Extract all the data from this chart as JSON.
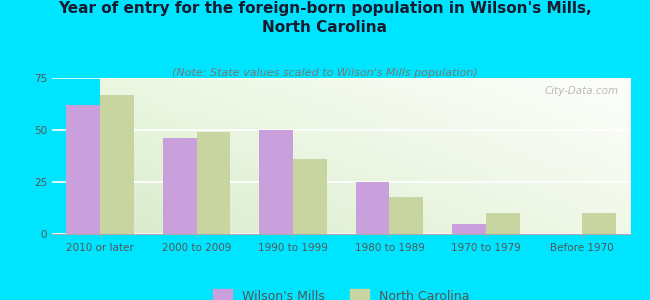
{
  "title": "Year of entry for the foreign-born population in Wilson's Mills,\nNorth Carolina",
  "subtitle": "(Note: State values scaled to Wilson's Mills population)",
  "categories": [
    "2010 or later",
    "2000 to 2009",
    "1990 to 1999",
    "1980 to 1989",
    "1970 to 1979",
    "Before 1970"
  ],
  "wilsons_mills": [
    62,
    46,
    50,
    25,
    5,
    0
  ],
  "north_carolina": [
    67,
    49,
    36,
    18,
    10,
    10
  ],
  "bar_color_wm": "#c9a0dc",
  "bar_color_nc": "#c8d5a0",
  "background_color": "#00e5ff",
  "ylim": [
    0,
    75
  ],
  "yticks": [
    0,
    25,
    50,
    75
  ],
  "legend_wm": "Wilson's Mills",
  "legend_nc": "North Carolina",
  "watermark": "City-Data.com",
  "title_fontsize": 11,
  "subtitle_fontsize": 8,
  "tick_fontsize": 7.5,
  "legend_fontsize": 9
}
